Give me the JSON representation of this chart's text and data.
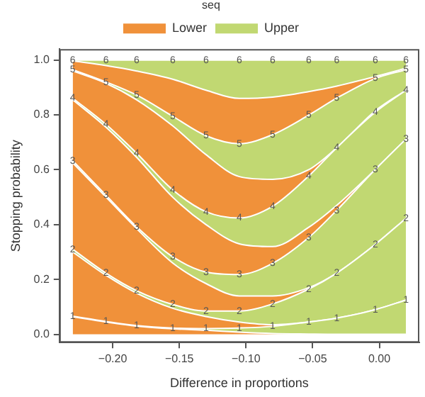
{
  "chart_data": {
    "type": "area",
    "stacked": true,
    "xlabel": "Difference in proportions",
    "ylabel": "Stopping probability",
    "legend_title": "seq",
    "legend": "top",
    "grid": false,
    "x": [
      -0.23,
      -0.205,
      -0.182,
      -0.155,
      -0.13,
      -0.105,
      -0.08,
      -0.053,
      -0.032,
      -0.003,
      0.02
    ],
    "xlim": [
      -0.24,
      0.03
    ],
    "xticks": [
      {
        "value": -0.2,
        "label": "−0.20"
      },
      {
        "value": -0.15,
        "label": "−0.15"
      },
      {
        "value": -0.1,
        "label": "−0.10"
      },
      {
        "value": -0.05,
        "label": "−0.05"
      },
      {
        "value": 0,
        "label": "0.00"
      }
    ],
    "ylim": [
      -0.03,
      1.04
    ],
    "yticks": [
      {
        "value": 0,
        "label": "0.0"
      },
      {
        "value": 0.2,
        "label": "0.2"
      },
      {
        "value": 0.4,
        "label": "0.4"
      },
      {
        "value": 0.6,
        "label": "0.6"
      },
      {
        "value": 0.8,
        "label": "0.8"
      },
      {
        "value": 1,
        "label": "1.0"
      }
    ],
    "series": [
      {
        "name": "Lower",
        "color": "#f0913a",
        "values": [
          0.064,
          0.045,
          0.03,
          0.02,
          0.015,
          0.008,
          0.003,
          0.001,
          0,
          0,
          0
        ]
      },
      {
        "name": "Upper",
        "color": "#c1d872",
        "values": [
          0.002,
          0.002,
          0.002,
          0.003,
          0.006,
          0.015,
          0.026,
          0.044,
          0.059,
          0.09,
          0.125
        ]
      },
      {
        "color": "#f0913a",
        "values": [
          0.234,
          0.168,
          0.118,
          0.072,
          0.044,
          0.022,
          0.006,
          0,
          0,
          0,
          0
        ]
      },
      {
        "color": "#c1d872",
        "values": [
          0.01,
          0.008,
          0.009,
          0.014,
          0.02,
          0.04,
          0.076,
          0.12,
          0.164,
          0.238,
          0.298
        ]
      },
      {
        "color": "#f0913a",
        "values": [
          0.315,
          0.277,
          0.226,
          0.151,
          0.1,
          0.055,
          0.029,
          0.005,
          0,
          0,
          0
        ]
      },
      {
        "color": "#c1d872",
        "values": [
          0.008,
          0.007,
          0.007,
          0.023,
          0.042,
          0.078,
          0.119,
          0.183,
          0.229,
          0.273,
          0.289
        ]
      },
      {
        "color": "#f0913a",
        "values": [
          0.222,
          0.248,
          0.253,
          0.217,
          0.173,
          0.112,
          0.061,
          0.037,
          0.018,
          0,
          0
        ]
      },
      {
        "color": "#c1d872",
        "values": [
          0.006,
          0.01,
          0.015,
          0.027,
          0.047,
          0.094,
          0.147,
          0.187,
          0.21,
          0.209,
          0.178
        ]
      },
      {
        "color": "#f0913a",
        "values": [
          0.099,
          0.15,
          0.195,
          0.233,
          0.208,
          0.151,
          0.098,
          0.023,
          0,
          0.005,
          0
        ]
      },
      {
        "color": "#c1d872",
        "values": [
          0.005,
          0.005,
          0.017,
          0.035,
          0.069,
          0.12,
          0.163,
          0.199,
          0.181,
          0.118,
          0.075
        ]
      },
      {
        "color": "#f0913a",
        "values": [
          0.032,
          0.06,
          0.088,
          0.135,
          0.166,
          0.165,
          0.137,
          0.086,
          0.044,
          0.007,
          0.005
        ]
      },
      {
        "color": "#c1d872",
        "values": [
          0.003,
          0.02,
          0.04,
          0.07,
          0.11,
          0.14,
          0.135,
          0.115,
          0.095,
          0.06,
          0.03
        ]
      }
    ],
    "annotations": [
      {
        "text": "1",
        "x": -0.23,
        "y": 0.066
      },
      {
        "text": "1",
        "x": -0.205,
        "y": 0.047
      },
      {
        "text": "1",
        "x": -0.182,
        "y": 0.032
      },
      {
        "text": "1",
        "x": -0.155,
        "y": 0.023
      },
      {
        "text": "1",
        "x": -0.13,
        "y": 0.021
      },
      {
        "text": "1",
        "x": -0.105,
        "y": 0.023
      },
      {
        "text": "1",
        "x": -0.08,
        "y": 0.029
      },
      {
        "text": "1",
        "x": -0.053,
        "y": 0.045
      },
      {
        "text": "1",
        "x": -0.032,
        "y": 0.059
      },
      {
        "text": "1",
        "x": -0.003,
        "y": 0.09
      },
      {
        "text": "1",
        "x": 0.02,
        "y": 0.125
      },
      {
        "text": "2",
        "x": -0.23,
        "y": 0.31
      },
      {
        "text": "2",
        "x": -0.205,
        "y": 0.223
      },
      {
        "text": "2",
        "x": -0.182,
        "y": 0.159
      },
      {
        "text": "2",
        "x": -0.155,
        "y": 0.109
      },
      {
        "text": "2",
        "x": -0.13,
        "y": 0.085
      },
      {
        "text": "2",
        "x": -0.105,
        "y": 0.085
      },
      {
        "text": "2",
        "x": -0.08,
        "y": 0.111
      },
      {
        "text": "2",
        "x": -0.053,
        "y": 0.165
      },
      {
        "text": "2",
        "x": -0.032,
        "y": 0.223
      },
      {
        "text": "2",
        "x": -0.003,
        "y": 0.328
      },
      {
        "text": "2",
        "x": 0.02,
        "y": 0.423
      },
      {
        "text": "3",
        "x": -0.23,
        "y": 0.633
      },
      {
        "text": "3",
        "x": -0.205,
        "y": 0.507
      },
      {
        "text": "3",
        "x": -0.182,
        "y": 0.392
      },
      {
        "text": "3",
        "x": -0.155,
        "y": 0.283
      },
      {
        "text": "3",
        "x": -0.13,
        "y": 0.227
      },
      {
        "text": "3",
        "x": -0.105,
        "y": 0.218
      },
      {
        "text": "3",
        "x": -0.08,
        "y": 0.259
      },
      {
        "text": "3",
        "x": -0.053,
        "y": 0.353
      },
      {
        "text": "3",
        "x": -0.032,
        "y": 0.452
      },
      {
        "text": "3",
        "x": -0.003,
        "y": 0.601
      },
      {
        "text": "3",
        "x": 0.02,
        "y": 0.712
      },
      {
        "text": "4",
        "x": -0.23,
        "y": 0.861
      },
      {
        "text": "4",
        "x": -0.205,
        "y": 0.765
      },
      {
        "text": "4",
        "x": -0.182,
        "y": 0.66
      },
      {
        "text": "4",
        "x": -0.155,
        "y": 0.527
      },
      {
        "text": "4",
        "x": -0.13,
        "y": 0.447
      },
      {
        "text": "4",
        "x": -0.105,
        "y": 0.424
      },
      {
        "text": "4",
        "x": -0.08,
        "y": 0.467
      },
      {
        "text": "4",
        "x": -0.053,
        "y": 0.577
      },
      {
        "text": "4",
        "x": -0.032,
        "y": 0.68
      },
      {
        "text": "4",
        "x": -0.003,
        "y": 0.81
      },
      {
        "text": "4",
        "x": 0.02,
        "y": 0.89
      },
      {
        "text": "5",
        "x": -0.23,
        "y": 0.965
      },
      {
        "text": "5",
        "x": -0.205,
        "y": 0.92
      },
      {
        "text": "5",
        "x": -0.182,
        "y": 0.872
      },
      {
        "text": "5",
        "x": -0.155,
        "y": 0.795
      },
      {
        "text": "5",
        "x": -0.13,
        "y": 0.724
      },
      {
        "text": "5",
        "x": -0.105,
        "y": 0.695
      },
      {
        "text": "5",
        "x": -0.08,
        "y": 0.728
      },
      {
        "text": "5",
        "x": -0.053,
        "y": 0.799
      },
      {
        "text": "5",
        "x": -0.032,
        "y": 0.861
      },
      {
        "text": "5",
        "x": -0.003,
        "y": 0.933
      },
      {
        "text": "5",
        "x": 0.02,
        "y": 0.965
      },
      {
        "text": "6",
        "x": -0.23,
        "y": 1
      },
      {
        "text": "6",
        "x": -0.205,
        "y": 1
      },
      {
        "text": "6",
        "x": -0.182,
        "y": 1
      },
      {
        "text": "6",
        "x": -0.155,
        "y": 1
      },
      {
        "text": "6",
        "x": -0.13,
        "y": 1
      },
      {
        "text": "6",
        "x": -0.105,
        "y": 1
      },
      {
        "text": "6",
        "x": -0.08,
        "y": 1
      },
      {
        "text": "6",
        "x": -0.053,
        "y": 1
      },
      {
        "text": "6",
        "x": -0.032,
        "y": 1
      },
      {
        "text": "6",
        "x": -0.003,
        "y": 1
      },
      {
        "text": "6",
        "x": 0.02,
        "y": 1
      }
    ]
  }
}
